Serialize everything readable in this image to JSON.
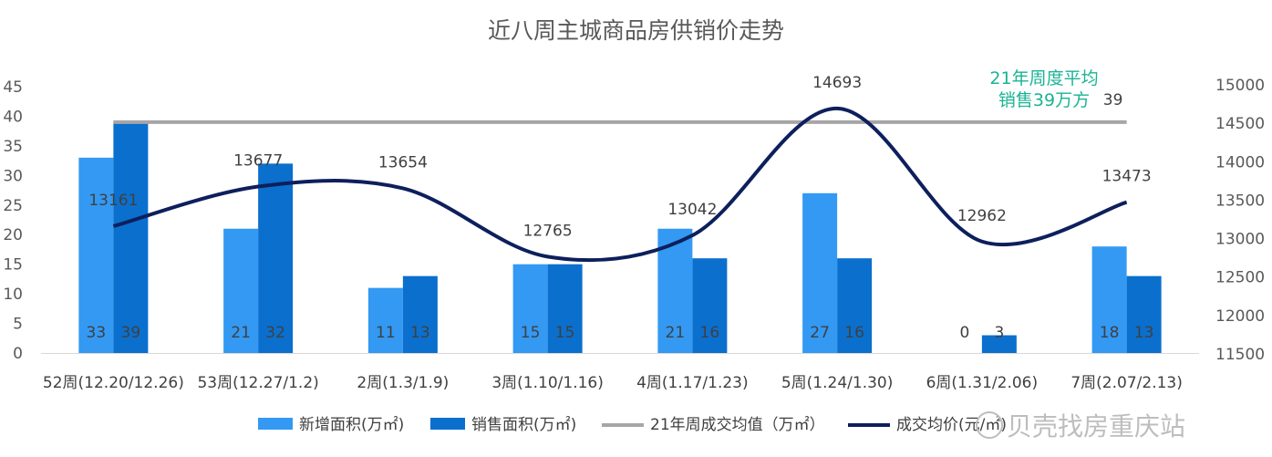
{
  "chart_data": {
    "type": "bar",
    "title": "近八周主城商品房供销价走势",
    "categories": [
      "52周(12.20/12.26)",
      "53周(12.27/1.2)",
      "2周(1.3/1.9)",
      "3周(1.10/1.16)",
      "4周(1.17/1.23)",
      "5周(1.24/1.30)",
      "6周(1.31/2.06)",
      "7周(2.07/2.13)"
    ],
    "y_left": {
      "min": 0,
      "max": 45,
      "step": 5,
      "ticks": [
        "0",
        "5",
        "10",
        "15",
        "20",
        "25",
        "30",
        "35",
        "40",
        "45"
      ]
    },
    "y_right": {
      "min": 11500,
      "max": 15000,
      "step": 500,
      "ticks": [
        "11500",
        "12000",
        "12500",
        "13000",
        "13500",
        "14000",
        "14500",
        "15000"
      ]
    },
    "series": [
      {
        "name": "新增面积(万㎡)",
        "type": "bar",
        "axis": "left",
        "color": "#3399f3",
        "values": [
          33,
          21,
          11,
          15,
          21,
          27,
          0,
          18
        ],
        "labels": [
          "33",
          "21",
          "11",
          "15",
          "21",
          "27",
          "0",
          "18"
        ]
      },
      {
        "name": "销售面积(万㎡)",
        "type": "bar",
        "axis": "left",
        "color": "#0b6fce",
        "values": [
          39,
          32,
          13,
          15,
          16,
          16,
          3,
          13
        ],
        "labels": [
          "39",
          "32",
          "13",
          "15",
          "16",
          "16",
          "3",
          "13"
        ]
      },
      {
        "name": "21年周成交均值（万㎡）",
        "type": "line",
        "axis": "left",
        "color": "#a6a6a6",
        "values": [
          39,
          39,
          39,
          39,
          39,
          39,
          39,
          39
        ],
        "end_label": "39"
      },
      {
        "name": "成交均价(元/㎡)",
        "type": "line",
        "axis": "right",
        "color": "#0d1f5c",
        "smooth": true,
        "values": [
          13161,
          13677,
          13654,
          12765,
          13042,
          14693,
          12962,
          13473
        ],
        "labels": [
          "13161",
          "13677",
          "13654",
          "12765",
          "13042",
          "14693",
          "12962",
          "13473"
        ]
      }
    ],
    "annotation": [
      "21年周度平均",
      "销售39万方"
    ],
    "legend_position": "bottom",
    "grid": false
  },
  "watermark": "贝壳找房重庆站"
}
